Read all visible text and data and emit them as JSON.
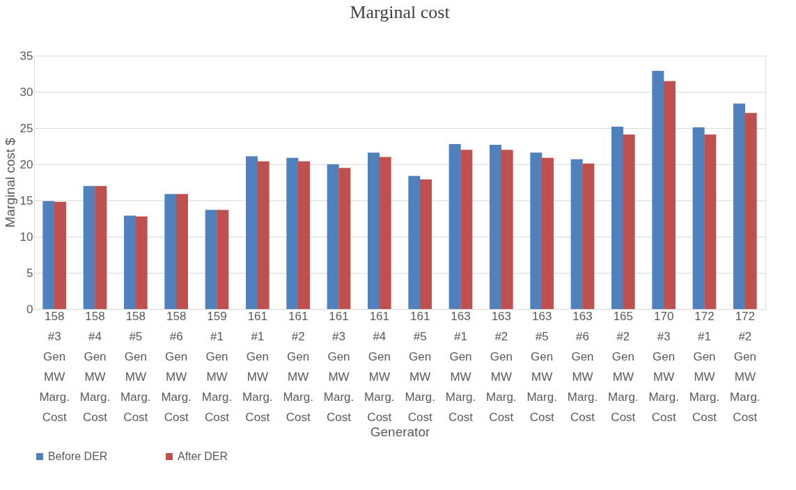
{
  "chart_data": {
    "type": "bar",
    "title": "Marginal cost",
    "xlabel": "Generator",
    "ylabel": "Marginal cost $",
    "categories": [
      "158 #3 Gen MW Marg. Cost",
      "158 #4 Gen MW Marg. Cost",
      "158 #5 Gen MW Marg. Cost",
      "158 #6 Gen MW Marg. Cost",
      "159 #1 Gen MW Marg. Cost",
      "161 #1 Gen MW Marg. Cost",
      "161 #2 Gen MW Marg. Cost",
      "161 #3 Gen MW Marg. Cost",
      "161 #4 Gen MW Marg. Cost",
      "161 #5 Gen MW Marg. Cost",
      "163 #1 Gen MW Marg. Cost",
      "163 #2 Gen MW Marg. Cost",
      "163 #5 Gen MW Marg. Cost",
      "163 #6 Gen MW Marg. Cost",
      "165 #2 Gen MW Marg. Cost",
      "170 #3 Gen MW Marg. Cost",
      "172 #1 Gen MW Marg. Cost",
      "172 #2 Gen MW Marg. Cost"
    ],
    "series": [
      {
        "name": "Before DER",
        "color": "#4f81bd",
        "values": [
          14.9,
          17.0,
          12.9,
          15.9,
          13.7,
          21.1,
          20.9,
          20.0,
          21.6,
          18.4,
          22.8,
          22.7,
          21.6,
          20.7,
          25.2,
          32.9,
          25.1,
          28.4
        ]
      },
      {
        "name": "After DER",
        "color": "#c0504d",
        "values": [
          14.8,
          17.0,
          12.8,
          15.9,
          13.7,
          20.4,
          20.4,
          19.5,
          21.0,
          17.9,
          22.0,
          22.0,
          20.9,
          20.1,
          24.1,
          31.5,
          24.1,
          27.1
        ]
      }
    ],
    "ylim": [
      0,
      35
    ],
    "yticks": [
      0,
      5,
      10,
      15,
      20,
      25,
      30,
      35
    ],
    "grid": "y",
    "legend": "bottom"
  }
}
